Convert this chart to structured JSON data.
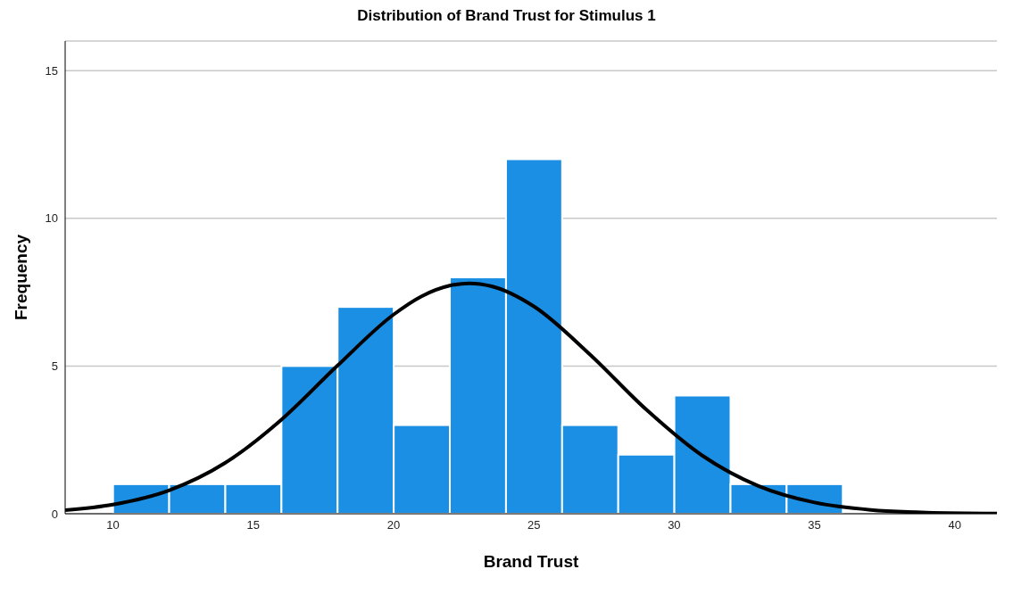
{
  "chart_data": {
    "type": "histogram",
    "title": "Distribution of Brand Trust for Stimulus 1",
    "xlabel": "Brand Trust",
    "ylabel": "Frequency",
    "bins": [
      10,
      12,
      14,
      16,
      18,
      20,
      22,
      24,
      26,
      28,
      30,
      32,
      34,
      36
    ],
    "values": [
      1,
      1,
      1,
      5,
      7,
      3,
      8,
      12,
      3,
      2,
      4,
      1,
      1
    ],
    "color": "#1a8fe3",
    "series": [
      {
        "type": "line",
        "color": "#000000",
        "x": [
          8.3,
          10,
          12,
          14,
          16,
          18,
          20,
          21,
          22,
          22.7,
          23.5,
          25,
          27,
          29,
          31,
          33,
          35,
          37,
          39,
          41.5
        ],
        "values": [
          0.12,
          0.31,
          0.79,
          1.72,
          3.18,
          5.01,
          6.74,
          7.36,
          7.72,
          7.8,
          7.7,
          7.02,
          5.39,
          3.53,
          1.97,
          0.94,
          0.38,
          0.13,
          0.04,
          0.01
        ]
      }
    ],
    "xlim": [
      8.3,
      41.5
    ],
    "xticks": [
      10,
      15,
      20,
      25,
      30,
      35,
      40
    ],
    "ylim": [
      0,
      16
    ],
    "yticks": [
      0,
      5,
      10,
      15
    ],
    "grid": "y",
    "marker": "none",
    "line_style": "solid"
  }
}
